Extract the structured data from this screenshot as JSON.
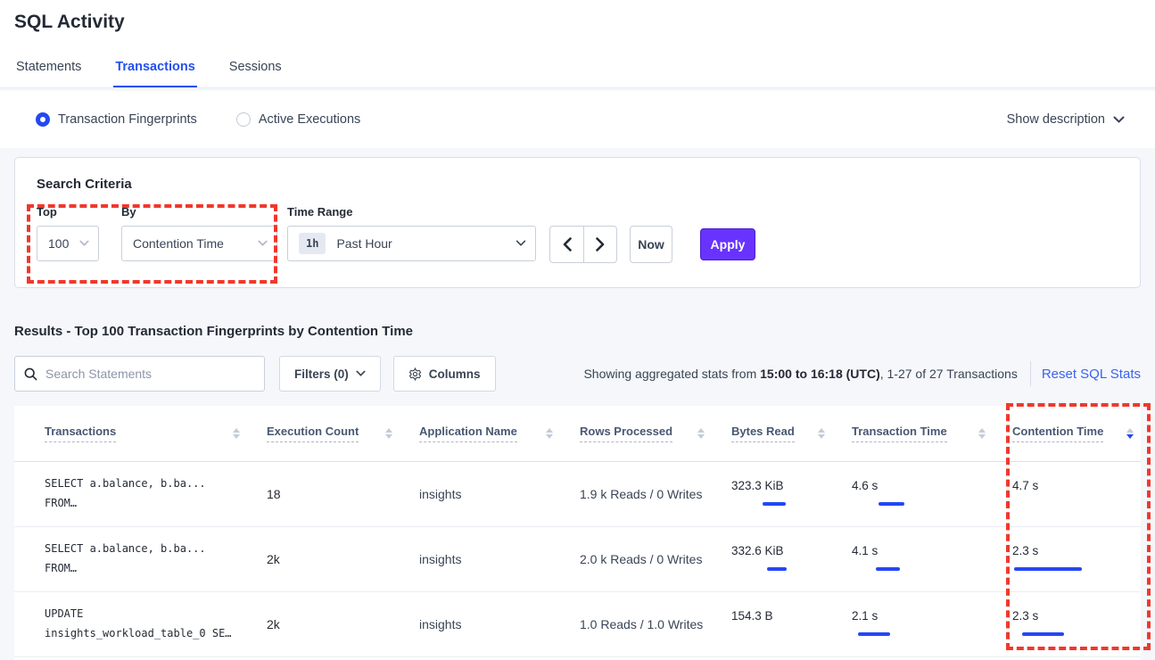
{
  "page": {
    "title": "SQL Activity"
  },
  "tabs": [
    {
      "label": "Statements",
      "active": false
    },
    {
      "label": "Transactions",
      "active": true
    },
    {
      "label": "Sessions",
      "active": false
    }
  ],
  "view_toggle": {
    "options": [
      {
        "label": "Transaction Fingerprints",
        "selected": true
      },
      {
        "label": "Active Executions",
        "selected": false
      }
    ],
    "show_description": "Show description"
  },
  "search_criteria": {
    "heading": "Search Criteria",
    "top": {
      "label": "Top",
      "value": "100"
    },
    "by": {
      "label": "By",
      "value": "Contention Time"
    },
    "time_range": {
      "label": "Time Range",
      "badge": "1h",
      "value": "Past Hour"
    },
    "now_label": "Now",
    "apply_label": "Apply"
  },
  "results": {
    "heading": "Results - Top 100 Transaction Fingerprints by Contention Time",
    "search_placeholder": "Search Statements",
    "filters_label": "Filters (0)",
    "columns_label": "Columns",
    "stats_prefix": "Showing aggregated stats from ",
    "stats_bold": "15:00 to 16:18 (UTC)",
    "stats_suffix": ", 1-27 of 27 Transactions",
    "reset_label": "Reset SQL Stats"
  },
  "table": {
    "columns": [
      "Transactions",
      "Execution Count",
      "Application Name",
      "Rows Processed",
      "Bytes Read",
      "Transaction Time",
      "Contention Time"
    ],
    "sorted_column_index": 6,
    "sort_direction": "desc",
    "rows": [
      {
        "transaction_line1": "SELECT a.balance, b.ba...",
        "transaction_line2": "FROM…",
        "execution_count": {
          "value": "18",
          "bar": {
            "grey": 2,
            "blue_start": 0,
            "blue_width": 0
          }
        },
        "application_name": "insights",
        "rows_processed": "1.9 k Reads / 0 Writes",
        "bytes_read": {
          "value": "323.3 KiB",
          "bar": {
            "grey": 49,
            "blue_start": 35,
            "blue_width": 26
          }
        },
        "transaction_time": {
          "value": "4.6 s",
          "bar": {
            "grey": 45,
            "blue_start": 30,
            "blue_width": 29
          }
        },
        "contention_time": {
          "value": "4.7 s",
          "bar": {
            "grey": 49,
            "blue_start": 0,
            "blue_width": 0
          }
        }
      },
      {
        "transaction_line1": "SELECT a.balance, b.ba...",
        "transaction_line2": "FROM…",
        "execution_count": {
          "value": "2k",
          "bar": {
            "grey": 67,
            "blue_start": 0,
            "blue_width": 0
          }
        },
        "application_name": "insights",
        "rows_processed": "2.0 k Reads / 0 Writes",
        "bytes_read": {
          "value": "332.6 KiB",
          "bar": {
            "grey": 49,
            "blue_start": 40,
            "blue_width": 22
          }
        },
        "transaction_time": {
          "value": "4.1 s",
          "bar": {
            "grey": 40,
            "blue_start": 27,
            "blue_width": 27
          }
        },
        "contention_time": {
          "value": "2.3 s",
          "bar": {
            "grey": 25,
            "blue_start": 2,
            "blue_width": 76
          }
        }
      },
      {
        "transaction_line1": "UPDATE",
        "transaction_line2": "insights_workload_table_0 SE…",
        "execution_count": {
          "value": "2k",
          "bar": {
            "grey": 67,
            "blue_start": 0,
            "blue_width": 0
          }
        },
        "application_name": "insights",
        "rows_processed": "1.0 Reads / 1.0 Writes",
        "bytes_read": {
          "value": "154.3 B",
          "bar": {
            "grey": 0,
            "blue_start": 0,
            "blue_width": 0
          }
        },
        "transaction_time": {
          "value": "2.1 s",
          "bar": {
            "grey": 19,
            "blue_start": 7,
            "blue_width": 36
          }
        },
        "contention_time": {
          "value": "2.3 s",
          "bar": {
            "grey": 25,
            "blue_start": 11,
            "blue_width": 47
          }
        }
      }
    ]
  },
  "colors": {
    "accent_blue": "#2450F0",
    "bar_blue": "#2447F5",
    "bar_grey": "#C6CBD9",
    "apply_purple": "#6933FF",
    "annotation_red": "#F0382C",
    "page_background": "#F5F7FA"
  }
}
